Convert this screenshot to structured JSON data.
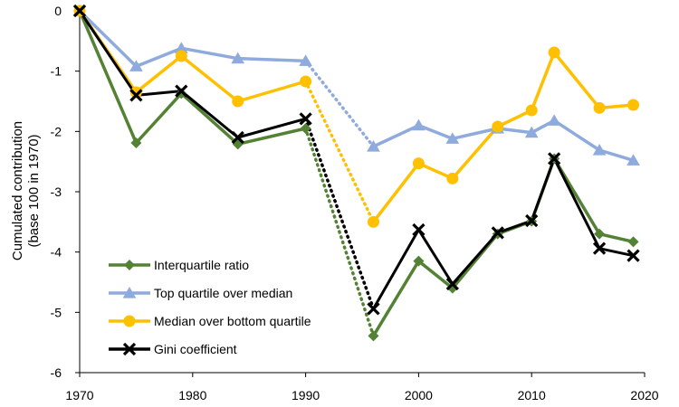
{
  "chart_data": {
    "type": "line",
    "title": "",
    "xlabel": "",
    "ylabel_lines": [
      "Cumulated contribution",
      "(base 100 in 1970)"
    ],
    "xlim": [
      1970,
      2020
    ],
    "ylim": [
      -6,
      0
    ],
    "x_ticks": [
      1970,
      1980,
      1990,
      2000,
      2010,
      2020
    ],
    "y_ticks": [
      0,
      -1,
      -2,
      -3,
      -4,
      -5,
      -6
    ],
    "grid": false,
    "legend_position": "bottom-left",
    "dotted_gap": [
      1990,
      1996
    ],
    "series": [
      {
        "name": "Interquartile ratio",
        "color": "#548235",
        "marker": "diamond",
        "x": [
          1970,
          1975,
          1979,
          1984,
          1990,
          1996,
          2000,
          2003,
          2007,
          2010,
          2012,
          2016,
          2019
        ],
        "values": [
          0,
          -2.19,
          -1.37,
          -2.21,
          -1.95,
          -5.39,
          -4.15,
          -4.6,
          -3.7,
          -3.49,
          -2.45,
          -3.7,
          -3.83
        ]
      },
      {
        "name": "Top quartile over median",
        "color": "#8faadc",
        "marker": "triangle",
        "x": [
          1970,
          1975,
          1979,
          1984,
          1990,
          1996,
          2000,
          2003,
          2007,
          2010,
          2012,
          2016,
          2019
        ],
        "values": [
          0,
          -0.92,
          -0.62,
          -0.79,
          -0.83,
          -2.25,
          -1.9,
          -2.12,
          -1.95,
          -2.02,
          -1.82,
          -2.31,
          -2.48
        ]
      },
      {
        "name": "Median over bottom quartile",
        "color": "#ffc000",
        "marker": "circle",
        "x": [
          1970,
          1975,
          1979,
          1984,
          1990,
          1996,
          2000,
          2003,
          2007,
          2010,
          2012,
          2016,
          2019
        ],
        "values": [
          0,
          -1.35,
          -0.75,
          -1.5,
          -1.17,
          -3.5,
          -2.53,
          -2.78,
          -1.92,
          -1.65,
          -0.69,
          -1.61,
          -1.56
        ]
      },
      {
        "name": "Gini coefficient",
        "color": "#000000",
        "marker": "x",
        "x": [
          1970,
          1975,
          1979,
          1984,
          1990,
          1996,
          2000,
          2003,
          2007,
          2010,
          2012,
          2016,
          2019
        ],
        "values": [
          0,
          -1.4,
          -1.33,
          -2.1,
          -1.79,
          -4.94,
          -3.63,
          -4.53,
          -3.68,
          -3.48,
          -2.45,
          -3.94,
          -4.06
        ]
      }
    ]
  }
}
